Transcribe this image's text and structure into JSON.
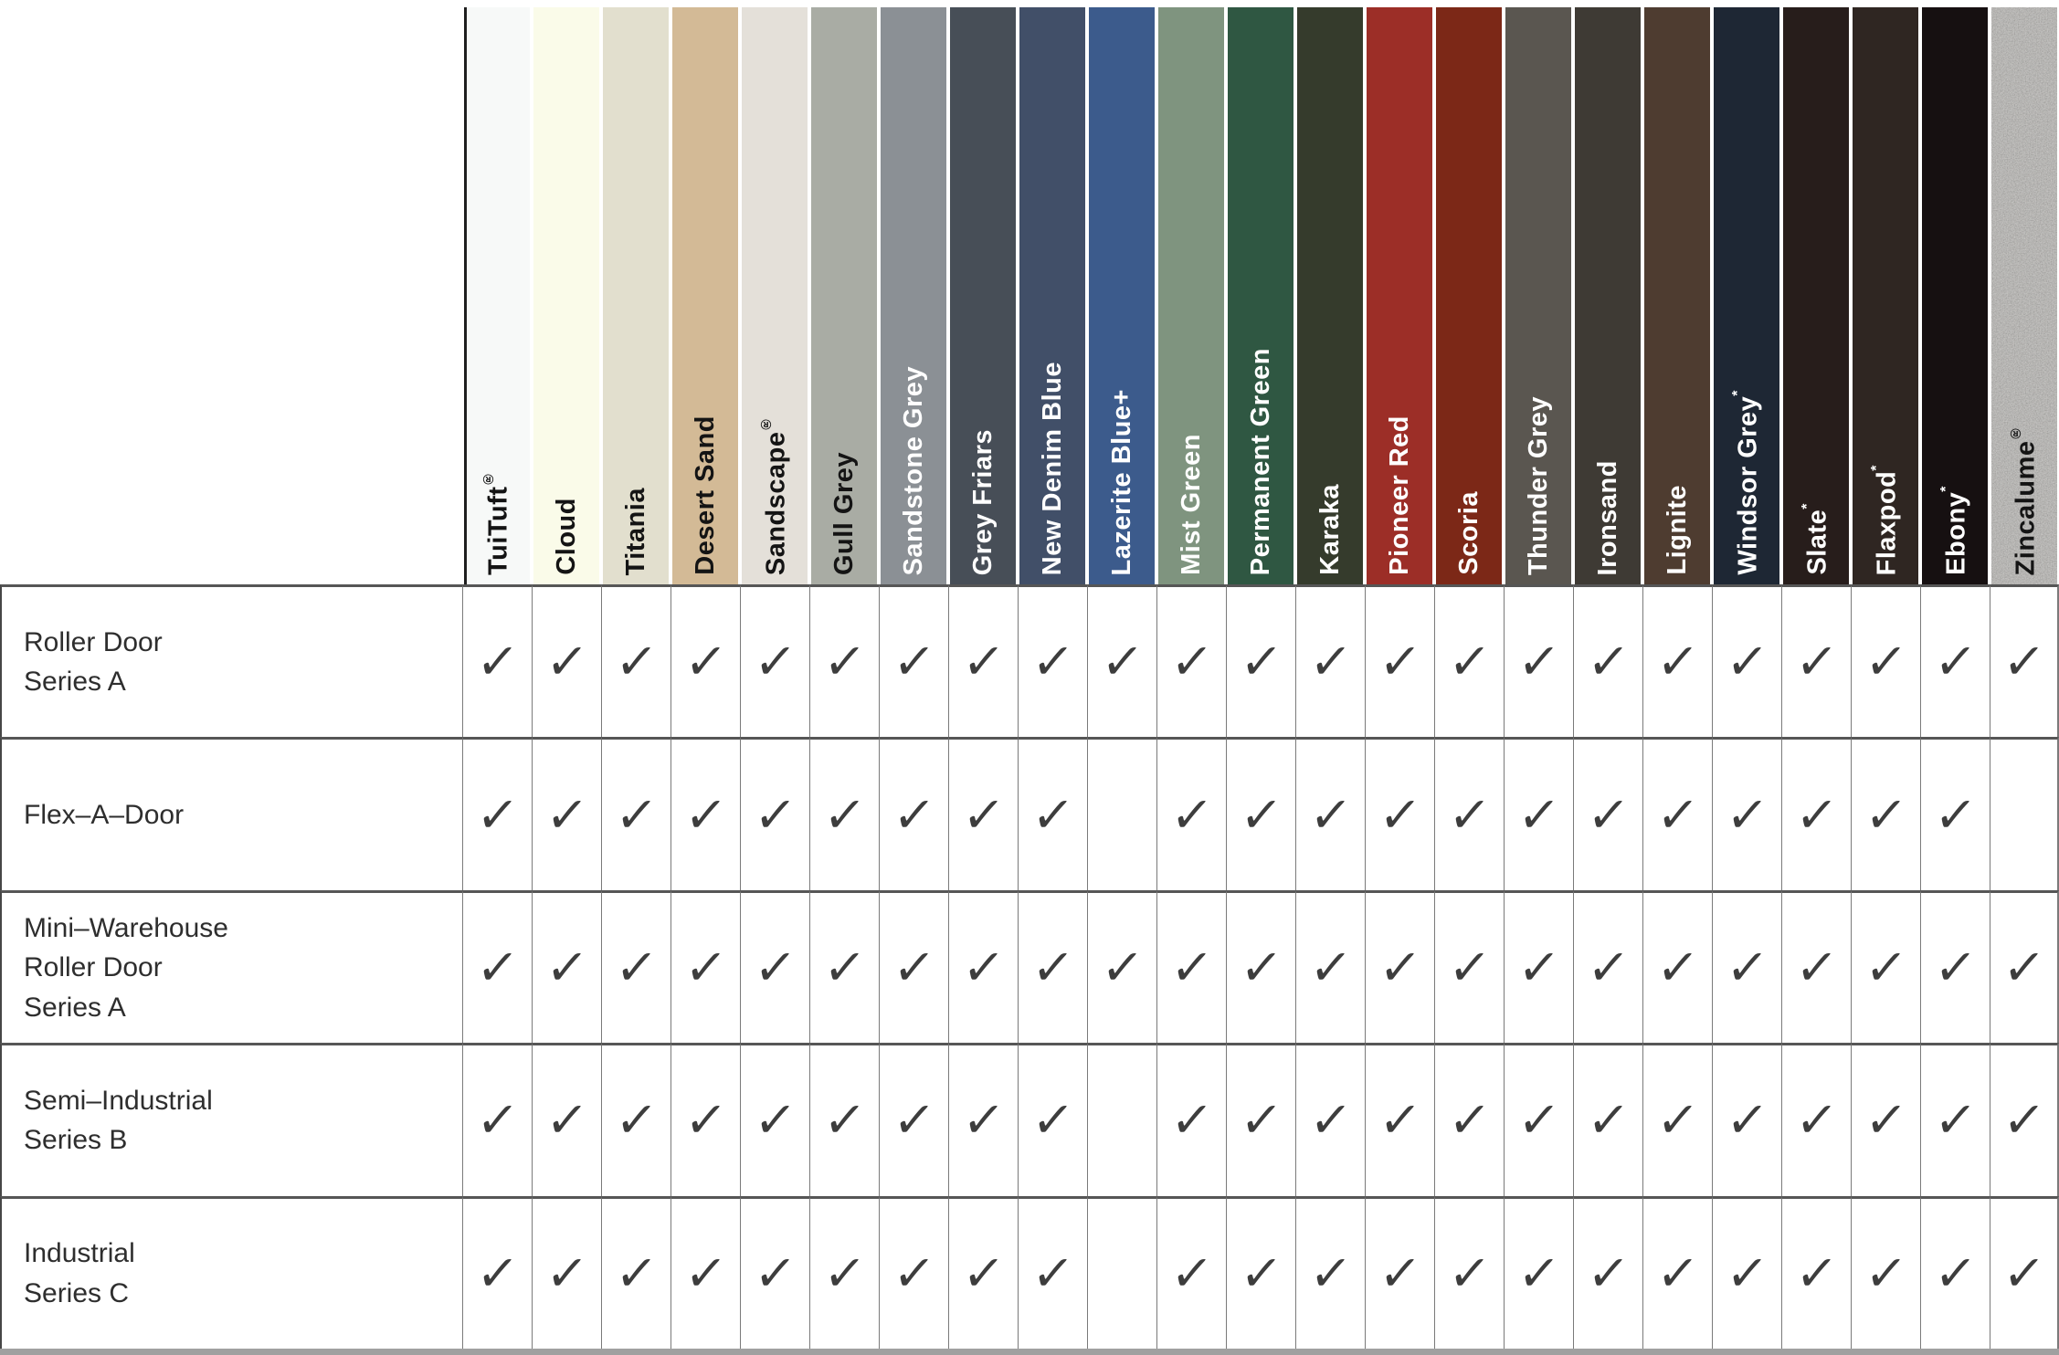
{
  "table": {
    "check_glyph": "✓",
    "check_color": "#3d3d3d",
    "colors": [
      {
        "name": "TuiTuft",
        "mark": "®",
        "hex": "#f7f9f8",
        "text": "dark"
      },
      {
        "name": "Cloud",
        "mark": "",
        "hex": "#fafbe9",
        "text": "dark"
      },
      {
        "name": "Titania",
        "mark": "",
        "hex": "#e2dfce",
        "text": "dark"
      },
      {
        "name": "Desert Sand",
        "mark": "",
        "hex": "#d3ba96",
        "text": "dark"
      },
      {
        "name": "Sandscape",
        "mark": "®",
        "hex": "#e4e0d9",
        "text": "dark"
      },
      {
        "name": "Gull Grey",
        "mark": "",
        "hex": "#a9aca4",
        "text": "dark"
      },
      {
        "name": "Sandstone Grey",
        "mark": "",
        "hex": "#8b9095",
        "text": "light"
      },
      {
        "name": "Grey Friars",
        "mark": "",
        "hex": "#474e57",
        "text": "light"
      },
      {
        "name": "New Denim Blue",
        "mark": "",
        "hex": "#414f68",
        "text": "light"
      },
      {
        "name": "Lazerite Blue+",
        "mark": "",
        "hex": "#3c5b8c",
        "text": "light"
      },
      {
        "name": "Mist Green",
        "mark": "",
        "hex": "#7f947f",
        "text": "light"
      },
      {
        "name": "Permanent Green",
        "mark": "",
        "hex": "#2f5742",
        "text": "light"
      },
      {
        "name": "Karaka",
        "mark": "",
        "hex": "#353b2c",
        "text": "light"
      },
      {
        "name": "Pioneer Red",
        "mark": "",
        "hex": "#9c2e27",
        "text": "light"
      },
      {
        "name": "Scoria",
        "mark": "",
        "hex": "#7c2817",
        "text": "light"
      },
      {
        "name": "Thunder Grey",
        "mark": "",
        "hex": "#5a5650",
        "text": "light"
      },
      {
        "name": "Ironsand",
        "mark": "",
        "hex": "#3e3a34",
        "text": "light"
      },
      {
        "name": "Lignite",
        "mark": "",
        "hex": "#4e3c30",
        "text": "light"
      },
      {
        "name": "Windsor Grey",
        "mark": "*",
        "hex": "#1e2734",
        "text": "light"
      },
      {
        "name": "Slate",
        "mark": "*",
        "hex": "#271d1b",
        "text": "light"
      },
      {
        "name": "Flaxpod",
        "mark": "*",
        "hex": "#2f2622",
        "text": "light"
      },
      {
        "name": "Ebony",
        "mark": "*",
        "hex": "#161011",
        "text": "light"
      },
      {
        "name": "Zincalume",
        "mark": "®",
        "hex": "#b8b6b2",
        "text": "dark",
        "speckled": true
      }
    ],
    "products": [
      {
        "label": "Roller Door\nSeries A",
        "available": [
          1,
          1,
          1,
          1,
          1,
          1,
          1,
          1,
          1,
          1,
          1,
          1,
          1,
          1,
          1,
          1,
          1,
          1,
          1,
          1,
          1,
          1,
          1
        ]
      },
      {
        "label": "Flex–A–Door",
        "available": [
          1,
          1,
          1,
          1,
          1,
          1,
          1,
          1,
          1,
          0,
          1,
          1,
          1,
          1,
          1,
          1,
          1,
          1,
          1,
          1,
          1,
          1,
          0
        ]
      },
      {
        "label": "Mini–Warehouse\nRoller Door\nSeries A",
        "available": [
          1,
          1,
          1,
          1,
          1,
          1,
          1,
          1,
          1,
          1,
          1,
          1,
          1,
          1,
          1,
          1,
          1,
          1,
          1,
          1,
          1,
          1,
          1
        ]
      },
      {
        "label": "Semi–Industrial\nSeries B",
        "available": [
          1,
          1,
          1,
          1,
          1,
          1,
          1,
          1,
          1,
          0,
          1,
          1,
          1,
          1,
          1,
          1,
          1,
          1,
          1,
          1,
          1,
          1,
          1
        ]
      },
      {
        "label": "Industrial\nSeries C",
        "available": [
          1,
          1,
          1,
          1,
          1,
          1,
          1,
          1,
          1,
          0,
          1,
          1,
          1,
          1,
          1,
          1,
          1,
          1,
          1,
          1,
          1,
          1,
          1
        ]
      }
    ]
  }
}
